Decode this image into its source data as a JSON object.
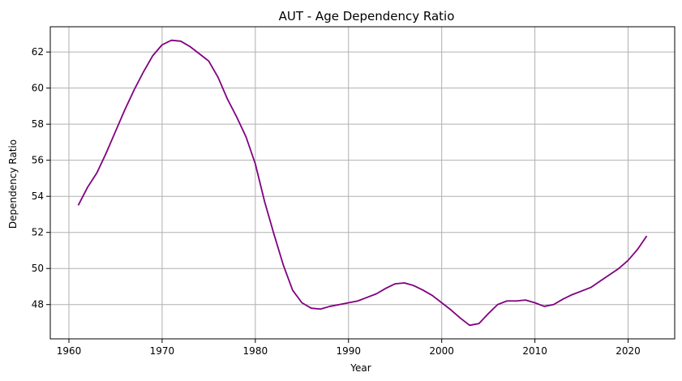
{
  "chart_data": {
    "type": "line",
    "title": "AUT - Age Dependency Ratio",
    "xlabel": "Year",
    "ylabel": "Dependency Ratio",
    "xlim": [
      1958,
      2025
    ],
    "ylim": [
      46.1,
      63.4
    ],
    "xticks": [
      1960,
      1970,
      1980,
      1990,
      2000,
      2010,
      2020
    ],
    "yticks": [
      48,
      50,
      52,
      54,
      56,
      58,
      60,
      62
    ],
    "grid": true,
    "line_color": "#800080",
    "series": [
      {
        "x": [
          1961,
          1962,
          1963,
          1964,
          1965,
          1966,
          1967,
          1968,
          1969,
          1970,
          1971,
          1972,
          1973,
          1974,
          1975,
          1976,
          1977,
          1978,
          1979,
          1980,
          1981,
          1982,
          1983,
          1984,
          1985,
          1986,
          1987,
          1988,
          1989,
          1990,
          1991,
          1992,
          1993,
          1994,
          1995,
          1996,
          1997,
          1998,
          1999,
          2000,
          2001,
          2002,
          2003,
          2004,
          2005,
          2006,
          2007,
          2008,
          2009,
          2010,
          2011,
          2012,
          2013,
          2014,
          2015,
          2016,
          2017,
          2018,
          2019,
          2020,
          2021,
          2022
        ],
        "y": [
          53.5,
          54.5,
          55.3,
          56.4,
          57.6,
          58.8,
          59.9,
          60.9,
          61.8,
          62.4,
          62.65,
          62.6,
          62.3,
          61.9,
          61.5,
          60.6,
          59.4,
          58.4,
          57.3,
          55.8,
          53.7,
          51.9,
          50.2,
          48.8,
          48.1,
          47.8,
          47.75,
          47.9,
          48.0,
          48.1,
          48.2,
          48.4,
          48.6,
          48.9,
          49.15,
          49.2,
          49.05,
          48.8,
          48.5,
          48.1,
          47.7,
          47.25,
          46.85,
          46.95,
          47.5,
          48.0,
          48.2,
          48.2,
          48.25,
          48.1,
          47.9,
          48.0,
          48.3,
          48.55,
          48.75,
          48.95,
          49.3,
          49.65,
          50.0,
          50.45,
          51.05,
          51.8
        ]
      }
    ]
  }
}
